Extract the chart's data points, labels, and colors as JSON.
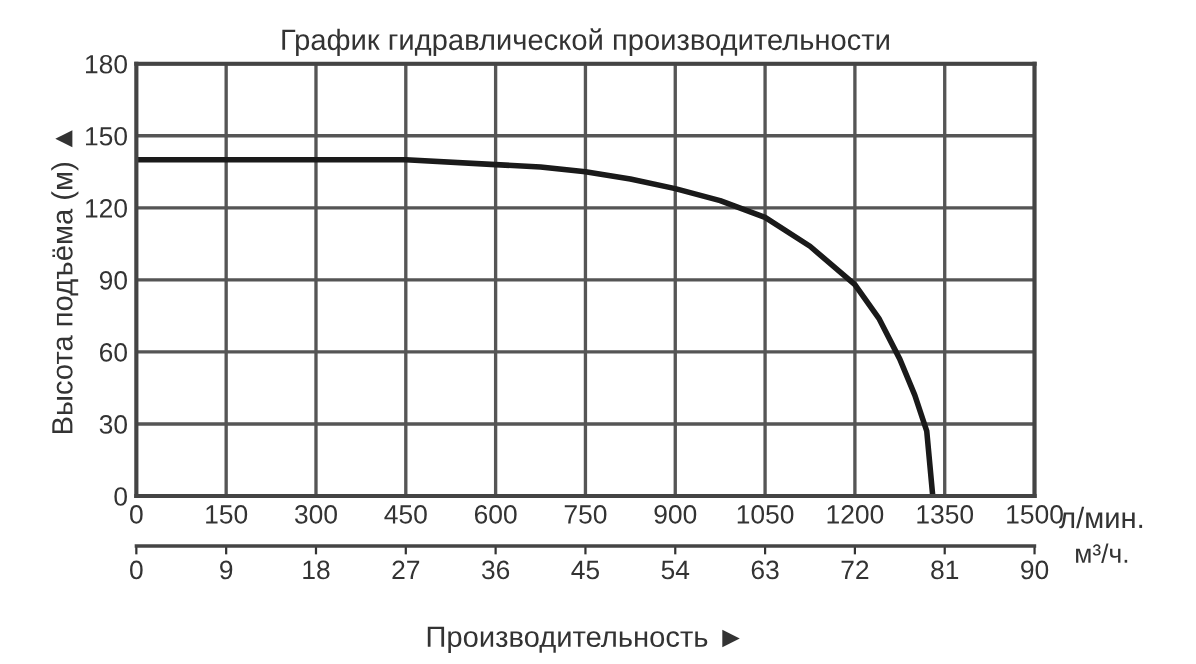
{
  "chart_data": {
    "type": "line",
    "title": "График гидравлической производительности",
    "xlabel": "л/мин.",
    "x2label": "м³/ч.",
    "ylabel": "Высота подъёма (м) ▲",
    "annotations": [
      "Производительность ►"
    ],
    "series": [
      {
        "color": "#1a1a1a",
        "x": [
          0,
          150,
          300,
          450,
          600,
          675,
          750,
          825,
          900,
          975,
          1050,
          1125,
          1200,
          1240,
          1275,
          1300,
          1320,
          1330
        ],
        "values": [
          140,
          140,
          140,
          140,
          138,
          137,
          135,
          132,
          128,
          123,
          116,
          104,
          88,
          74,
          57,
          42,
          27,
          0
        ]
      }
    ],
    "xlim": [
      0,
      1500
    ],
    "xticks": [
      0,
      150,
      300,
      450,
      600,
      750,
      900,
      1050,
      1200,
      1350,
      1500
    ],
    "x2lim": [
      0,
      90
    ],
    "x2ticks": [
      0,
      9,
      18,
      27,
      36,
      45,
      54,
      63,
      72,
      81,
      90
    ],
    "ylim": [
      0,
      180
    ],
    "yticks": [
      0,
      30,
      60,
      90,
      120,
      150,
      180
    ],
    "grid": true,
    "legend": false,
    "marker": "none",
    "line_style": "solid"
  }
}
